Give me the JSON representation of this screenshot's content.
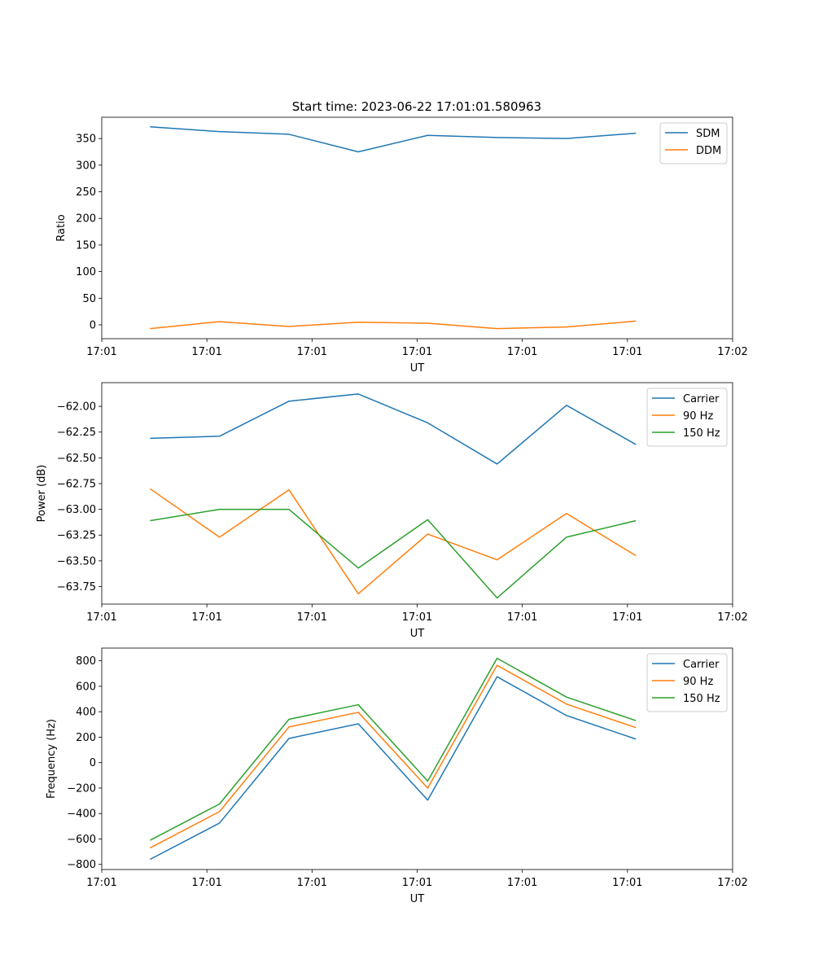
{
  "figure_title": "Start time: 2023-06-22 17:01:01.580963",
  "colors": {
    "blue": "#1f77b4",
    "orange": "#ff7f0e",
    "green": "#2ca02c"
  },
  "chart_data": [
    {
      "id": "ratio",
      "type": "line",
      "title": "Start time: 2023-06-22 17:01:01.580963",
      "xlabel": "UT",
      "ylabel": "Ratio",
      "xlim": [
        0,
        30
      ],
      "ylim": [
        -26,
        390
      ],
      "x_ticks": [
        0,
        5,
        10,
        15,
        20,
        25,
        30
      ],
      "x_tick_labels": [
        "17:01",
        "17:01",
        "17:01",
        "17:01",
        "17:01",
        "17:01",
        "17:02"
      ],
      "y_ticks": [
        0,
        50,
        100,
        150,
        200,
        250,
        300,
        350
      ],
      "y_tick_labels": [
        "0",
        "50",
        "100",
        "150",
        "200",
        "250",
        "300",
        "350"
      ],
      "legend_position": "top-right",
      "x": [
        2.3,
        5.6,
        8.9,
        12.2,
        15.5,
        18.8,
        22.1,
        25.4
      ],
      "series": [
        {
          "name": "SDM",
          "color": "#1f77b4",
          "values": [
            372,
            363,
            358,
            325,
            356,
            352,
            350,
            360
          ]
        },
        {
          "name": "DDM",
          "color": "#ff7f0e",
          "values": [
            -7,
            6,
            -3,
            5,
            3,
            -7,
            -4,
            7
          ]
        }
      ]
    },
    {
      "id": "power",
      "type": "line",
      "title": "",
      "xlabel": "UT",
      "ylabel": "Power (dB)",
      "xlim": [
        0,
        30
      ],
      "ylim": [
        -63.92,
        -61.77
      ],
      "x_ticks": [
        0,
        5,
        10,
        15,
        20,
        25,
        30
      ],
      "x_tick_labels": [
        "17:01",
        "17:01",
        "17:01",
        "17:01",
        "17:01",
        "17:01",
        "17:02"
      ],
      "y_ticks": [
        -63.75,
        -63.5,
        -63.25,
        -63.0,
        -62.75,
        -62.5,
        -62.25,
        -62.0
      ],
      "y_tick_labels": [
        "−63.75",
        "−63.50",
        "−63.25",
        "−63.00",
        "−62.75",
        "−62.50",
        "−62.25",
        "−62.00"
      ],
      "legend_position": "top-right",
      "x": [
        2.3,
        5.6,
        8.9,
        12.2,
        15.5,
        18.8,
        22.1,
        25.4
      ],
      "series": [
        {
          "name": "Carrier",
          "color": "#1f77b4",
          "values": [
            -62.31,
            -62.29,
            -61.95,
            -61.88,
            -62.16,
            -62.56,
            -61.99,
            -62.37
          ]
        },
        {
          "name": "90 Hz",
          "color": "#ff7f0e",
          "values": [
            -62.8,
            -63.27,
            -62.81,
            -63.82,
            -63.24,
            -63.49,
            -63.04,
            -63.45
          ]
        },
        {
          "name": "150 Hz",
          "color": "#2ca02c",
          "values": [
            -63.11,
            -63.0,
            -63.0,
            -63.57,
            -63.1,
            -63.86,
            -63.27,
            -63.11
          ]
        }
      ]
    },
    {
      "id": "frequency",
      "type": "line",
      "title": "",
      "xlabel": "UT",
      "ylabel": "Frequency (Hz)",
      "xlim": [
        0,
        30
      ],
      "ylim": [
        -840,
        900
      ],
      "x_ticks": [
        0,
        5,
        10,
        15,
        20,
        25,
        30
      ],
      "x_tick_labels": [
        "17:01",
        "17:01",
        "17:01",
        "17:01",
        "17:01",
        "17:01",
        "17:02"
      ],
      "y_ticks": [
        -800,
        -600,
        -400,
        -200,
        0,
        200,
        400,
        600,
        800
      ],
      "y_tick_labels": [
        "−800",
        "−600",
        "−400",
        "−200",
        "0",
        "200",
        "400",
        "600",
        "800"
      ],
      "legend_position": "top-right",
      "x": [
        2.3,
        5.6,
        8.9,
        12.2,
        15.5,
        18.8,
        22.1,
        25.4
      ],
      "series": [
        {
          "name": "Carrier",
          "color": "#1f77b4",
          "values": [
            -760,
            -475,
            190,
            305,
            -295,
            675,
            370,
            185
          ]
        },
        {
          "name": "90 Hz",
          "color": "#ff7f0e",
          "values": [
            -670,
            -385,
            280,
            395,
            -200,
            765,
            460,
            275
          ]
        },
        {
          "name": "150 Hz",
          "color": "#2ca02c",
          "values": [
            -610,
            -325,
            340,
            455,
            -145,
            820,
            515,
            330
          ]
        }
      ]
    }
  ]
}
